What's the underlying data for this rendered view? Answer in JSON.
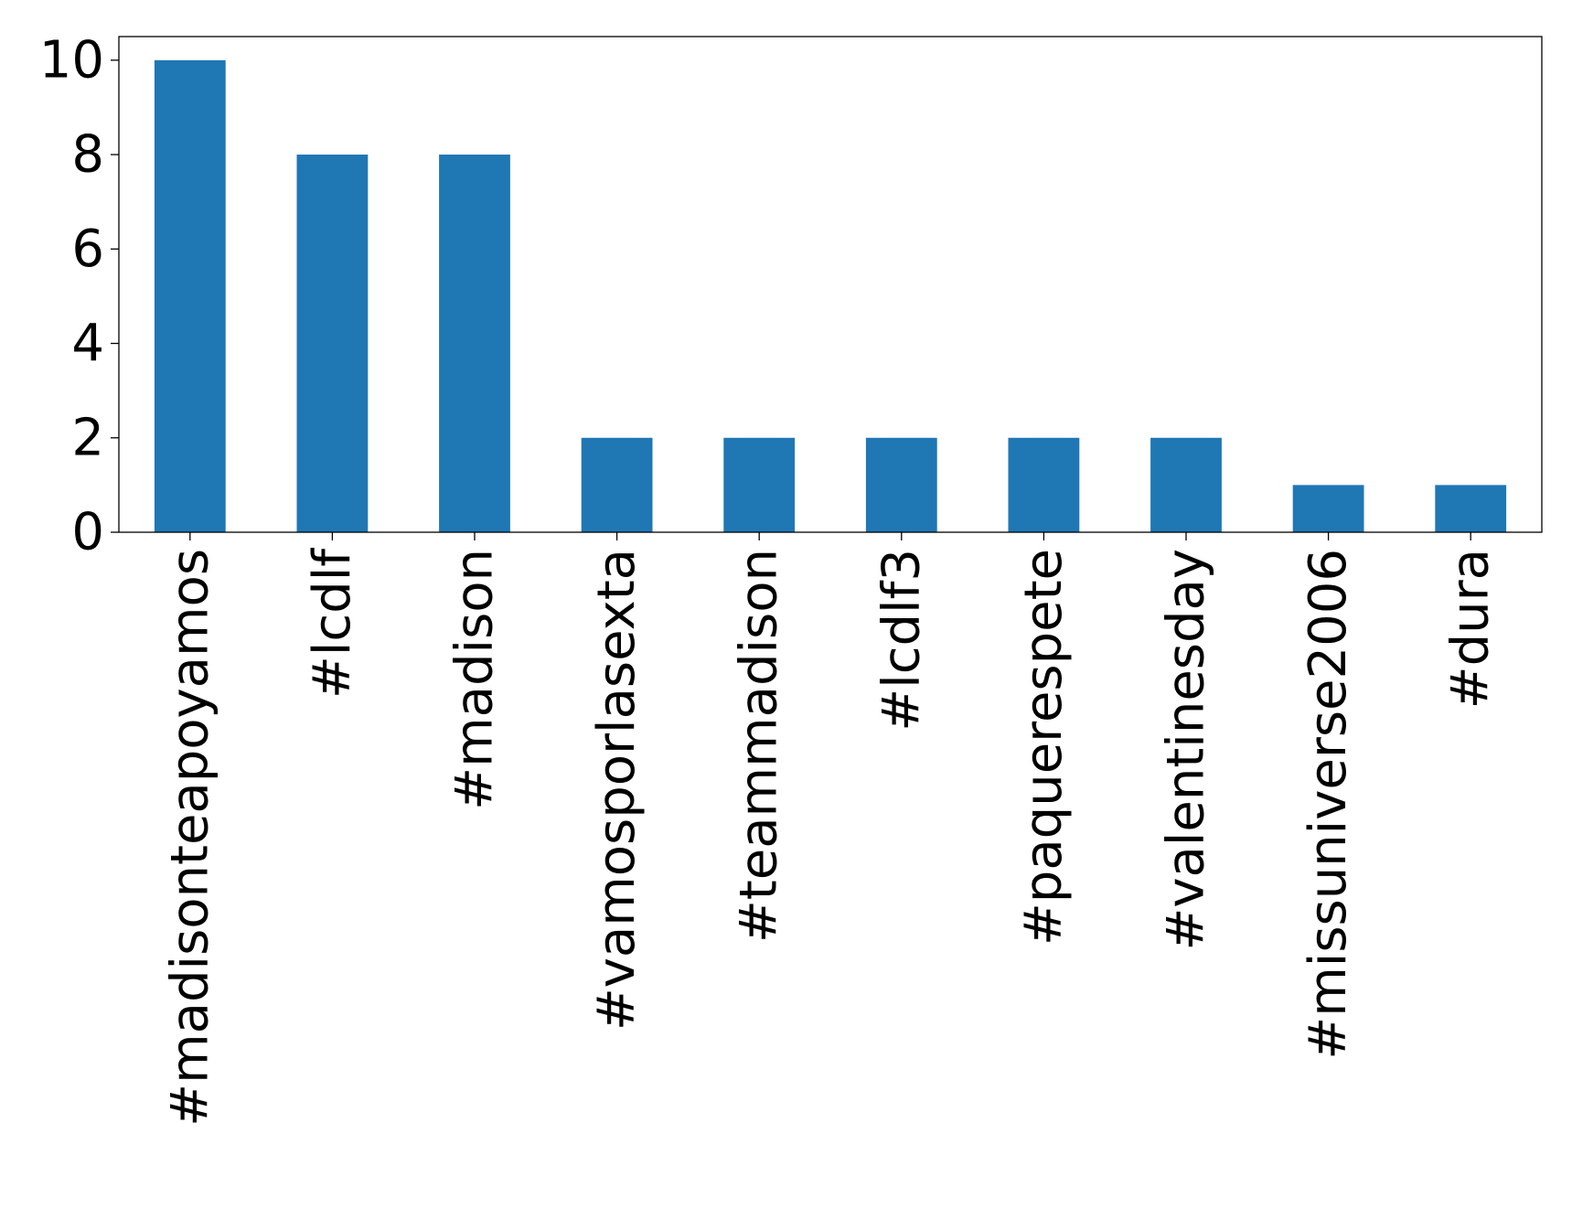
{
  "chart_data": {
    "type": "bar",
    "title": "",
    "xlabel": "",
    "ylabel": "",
    "categories": [
      "#madisonteapoyamos",
      "#lcdlf",
      "#madison",
      "#vamosporlasexta",
      "#teammadison",
      "#lcdlf3",
      "#paquerespete",
      "#valentinesday",
      "#missuniverse2006",
      "#dura"
    ],
    "values": [
      10,
      8,
      8,
      2,
      2,
      2,
      2,
      2,
      1,
      1
    ],
    "ylim": [
      0,
      10.5
    ],
    "yticks": [
      0,
      2,
      4,
      6,
      8,
      10
    ],
    "bar_color": "#1f77b4",
    "grid": false,
    "legend": "none"
  }
}
